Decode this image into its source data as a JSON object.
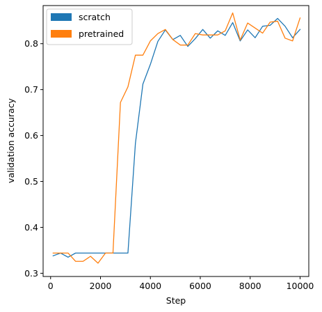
{
  "chart_data": {
    "type": "line",
    "title": "",
    "xlabel": "Step",
    "ylabel": "validation accuracy",
    "xlim": [
      -300,
      10350
    ],
    "ylim": [
      0.293,
      0.883
    ],
    "xticks": [
      0,
      2000,
      4000,
      6000,
      8000,
      10000
    ],
    "xtick_labels": [
      "0",
      "2000",
      "4000",
      "6000",
      "8000",
      "10000"
    ],
    "yticks": [
      0.3,
      0.4,
      0.5,
      0.6,
      0.7,
      0.8
    ],
    "ytick_labels": [
      "0.3",
      "0.4",
      "0.5",
      "0.6",
      "0.7",
      "0.8"
    ],
    "grid": false,
    "legend": "top-left",
    "series": [
      {
        "name": "scratch",
        "color": "#1f77b4",
        "x": [
          100,
          400,
          700,
          1000,
          1300,
          1600,
          1900,
          2200,
          2500,
          2800,
          3100,
          3400,
          3700,
          4000,
          4300,
          4600,
          4900,
          5200,
          5500,
          5800,
          6100,
          6400,
          6700,
          7000,
          7300,
          7600,
          7900,
          8200,
          8500,
          8800,
          9100,
          9400,
          9700,
          10000
        ],
        "values": [
          0.338,
          0.344,
          0.335,
          0.344,
          0.344,
          0.344,
          0.344,
          0.344,
          0.344,
          0.344,
          0.344,
          0.583,
          0.712,
          0.755,
          0.805,
          0.83,
          0.809,
          0.818,
          0.794,
          0.811,
          0.831,
          0.812,
          0.828,
          0.818,
          0.846,
          0.806,
          0.83,
          0.813,
          0.838,
          0.84,
          0.855,
          0.838,
          0.813,
          0.831
        ]
      },
      {
        "name": "pretrained",
        "color": "#ff7f0e",
        "x": [
          100,
          400,
          700,
          1000,
          1300,
          1600,
          1900,
          2200,
          2500,
          2800,
          3100,
          3400,
          3700,
          4000,
          4300,
          4600,
          4900,
          5200,
          5500,
          5800,
          6100,
          6400,
          6700,
          7000,
          7300,
          7600,
          7900,
          8200,
          8500,
          8800,
          9100,
          9400,
          9700,
          10000
        ],
        "values": [
          0.344,
          0.344,
          0.344,
          0.326,
          0.326,
          0.337,
          0.322,
          0.344,
          0.344,
          0.672,
          0.706,
          0.775,
          0.775,
          0.806,
          0.822,
          0.831,
          0.809,
          0.797,
          0.797,
          0.822,
          0.819,
          0.819,
          0.819,
          0.828,
          0.867,
          0.808,
          0.845,
          0.834,
          0.823,
          0.847,
          0.849,
          0.812,
          0.806,
          0.856
        ]
      }
    ]
  }
}
